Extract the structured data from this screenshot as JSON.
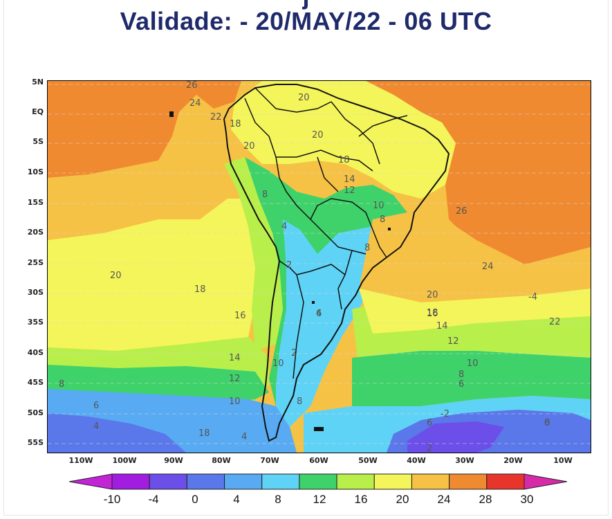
{
  "title_partial": "j",
  "title": "Validade: - 20/MAY/22 - 06 UTC",
  "map": {
    "lat_labels": [
      "5N",
      "EQ",
      "5S",
      "10S",
      "15S",
      "20S",
      "25S",
      "30S",
      "35S",
      "40S",
      "45S",
      "50S",
      "55S"
    ],
    "lon_labels": [
      "110W",
      "100W",
      "90W",
      "80W",
      "70W",
      "60W",
      "50W",
      "40W",
      "30W",
      "20W",
      "10W"
    ],
    "contour_labels": [
      "26",
      "24",
      "22",
      "18",
      "20",
      "20",
      "20",
      "18",
      "14",
      "12",
      "10",
      "8",
      "8",
      "4",
      "2",
      "8",
      "6",
      "26",
      "24",
      "20",
      "18",
      "16",
      "14",
      "12",
      "10",
      "8",
      "6",
      "4",
      "20",
      "18",
      "16",
      "14",
      "12",
      "10",
      "8",
      "6",
      "4",
      "6",
      "2",
      "8",
      "10",
      "6",
      "-2",
      "0",
      "2",
      "-4",
      "22",
      "20",
      "18",
      "16",
      "14",
      "12",
      "10",
      "8",
      "6",
      "4",
      "2",
      "0"
    ]
  },
  "colorbar": {
    "ticks": [
      "-10",
      "-4",
      "0",
      "4",
      "8",
      "12",
      "16",
      "20",
      "24",
      "28",
      "30"
    ],
    "colors": [
      "#a11ee0",
      "#6b4fe8",
      "#5a78ea",
      "#58aaf2",
      "#5ed3f6",
      "#3fd26a",
      "#b9ef4a",
      "#f4f55a",
      "#f6c245",
      "#f08a30",
      "#e8352c"
    ],
    "end_low_color": "#c225d6",
    "end_high_color": "#d62aa8"
  }
}
